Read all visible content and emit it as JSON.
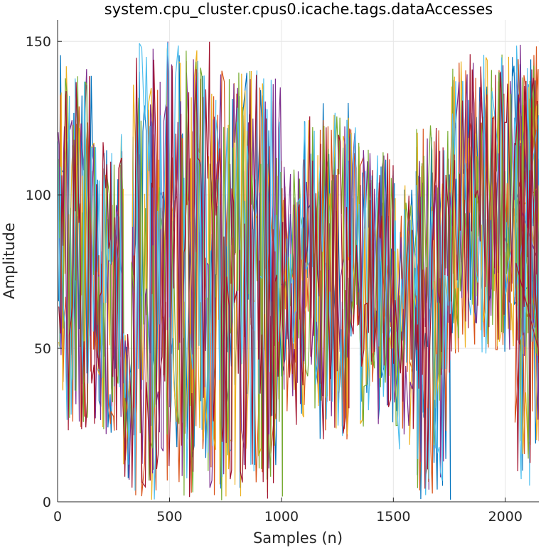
{
  "chart_data": {
    "type": "line",
    "title": "system.cpu_cluster.cpus0.icache.tags.dataAccesses",
    "xlabel": "Samples (n)",
    "ylabel": "Amplitude",
    "xlim": [
      0,
      2150
    ],
    "ylim": [
      0,
      157
    ],
    "xticks": [
      0,
      500,
      1000,
      1500,
      2000
    ],
    "yticks": [
      0,
      50,
      100,
      150
    ],
    "grid": true,
    "legend": "none",
    "series_colors": [
      "#0072BD",
      "#D95319",
      "#EDB120",
      "#7E2F8E",
      "#77AC30",
      "#4DBEEE",
      "#A2142F"
    ],
    "segments": [
      {
        "x_start": 0,
        "x_end": 20,
        "low": 30,
        "high": 146
      },
      {
        "x_start": 20,
        "x_end": 160,
        "low": 23,
        "high": 142
      },
      {
        "x_start": 160,
        "x_end": 290,
        "low": 22,
        "high": 120
      },
      {
        "x_start": 290,
        "x_end": 330,
        "low": 7,
        "high": 55
      },
      {
        "x_start": 330,
        "x_end": 420,
        "low": 0,
        "high": 150
      },
      {
        "x_start": 420,
        "x_end": 700,
        "low": 0,
        "high": 150
      },
      {
        "x_start": 700,
        "x_end": 1000,
        "low": 0,
        "high": 141
      },
      {
        "x_start": 1000,
        "x_end": 1100,
        "low": 25,
        "high": 110
      },
      {
        "x_start": 1100,
        "x_end": 1300,
        "low": 20,
        "high": 132
      },
      {
        "x_start": 1300,
        "x_end": 1350,
        "low": 52,
        "high": 124
      },
      {
        "x_start": 1350,
        "x_end": 1500,
        "low": 23,
        "high": 115
      },
      {
        "x_start": 1500,
        "x_end": 1600,
        "low": 17,
        "high": 105
      },
      {
        "x_start": 1600,
        "x_end": 1750,
        "low": 0,
        "high": 128
      },
      {
        "x_start": 1750,
        "x_end": 2150,
        "low": 48,
        "high": 146
      },
      {
        "x_start": 2040,
        "x_end": 2150,
        "low": 2,
        "high": 150
      }
    ]
  }
}
